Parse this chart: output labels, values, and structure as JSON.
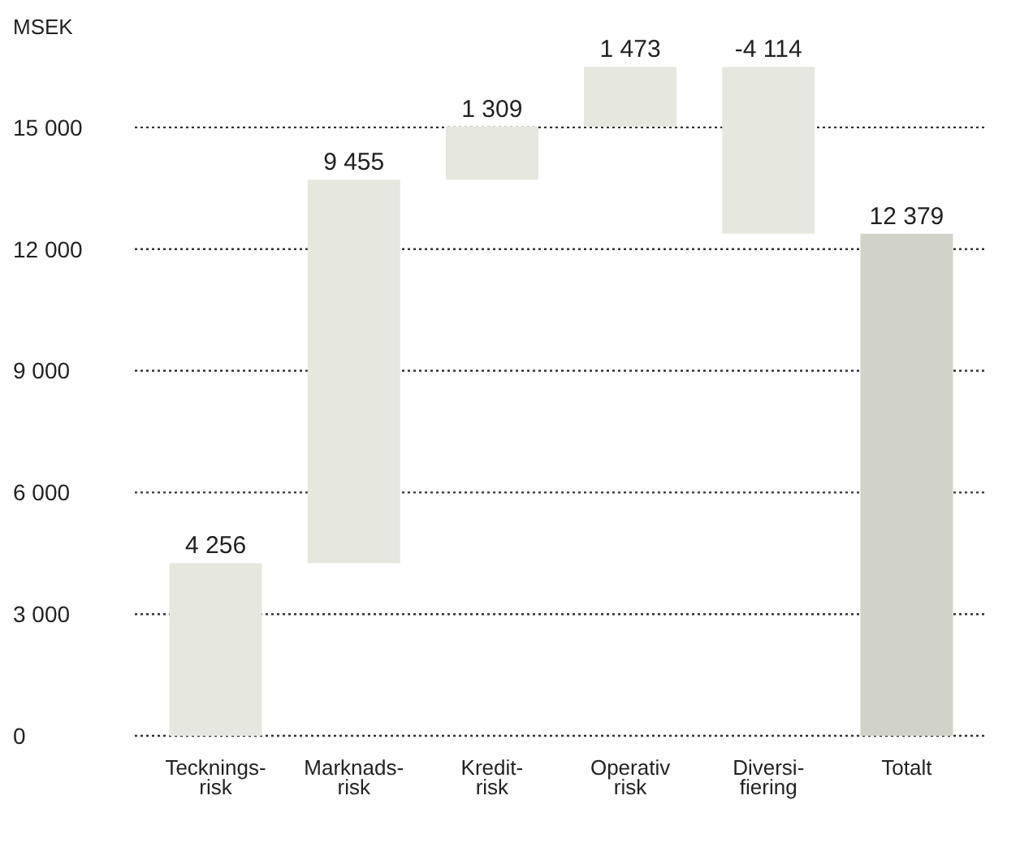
{
  "chart_data": {
    "type": "bar",
    "ylabel": "MSEK",
    "categories": [
      "Tecknings-\nrisk",
      "Marknads-\nrisk",
      "Kredit-\nrisk",
      "Operativ\nrisk",
      "Diversi-\nfiering",
      "Totalt"
    ],
    "values": [
      4256,
      9455,
      1309,
      1473,
      -4114,
      12379
    ],
    "base": [
      0,
      4256,
      13711,
      15020,
      16493,
      0
    ],
    "colors": [
      "#e6e8e0",
      "#e6e8e0",
      "#e6e8e0",
      "#e6e8e0",
      "#e6e8e0",
      "#d1d3c9"
    ],
    "value_labels": [
      "4 256",
      "9 455",
      "1 309",
      "1 473",
      "-4 114",
      "12 379"
    ],
    "ylim": [
      0,
      16500
    ],
    "yticks": [
      0,
      {
        "value": 3000,
        "label": "3 000"
      },
      {
        "value": 6000,
        "label": "6 000"
      },
      {
        "value": 9000,
        "label": "9 000"
      },
      {
        "value": 12000,
        "label": "12 000"
      },
      {
        "value": 15000,
        "label": "15 000"
      }
    ],
    "grid": "y"
  }
}
